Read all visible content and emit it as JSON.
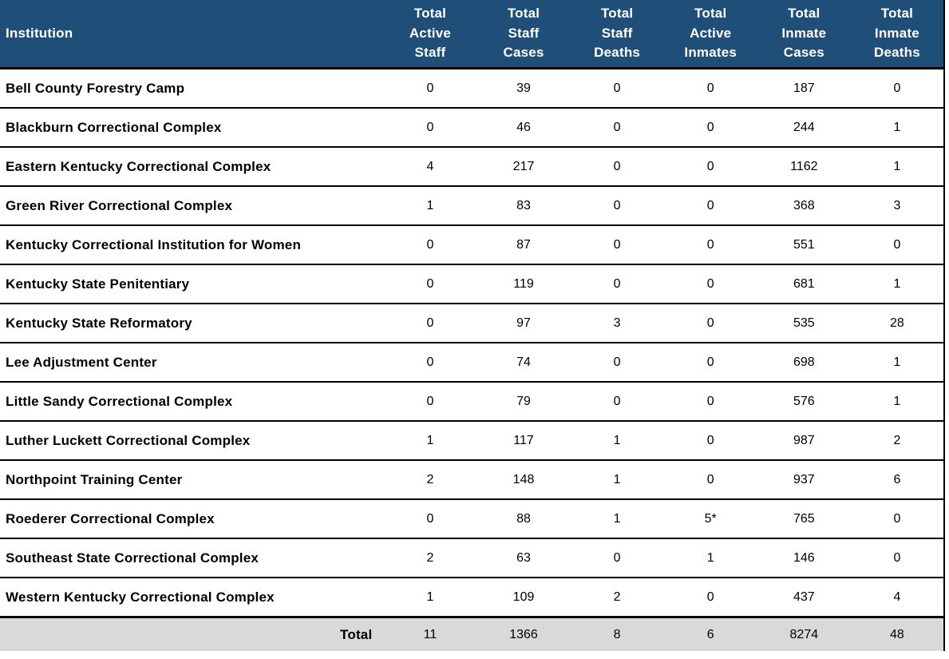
{
  "table": {
    "columns": [
      "Institution",
      "Total\nActive\nStaff",
      "Total\nStaff\nCases",
      "Total\nStaff\nDeaths",
      "Total\nActive\nInmates",
      "Total\nInmate\nCases",
      "Total\nInmate\nDeaths"
    ],
    "rows": [
      {
        "institution": "Bell County Forestry Camp",
        "values": [
          "0",
          "39",
          "0",
          "0",
          "187",
          "0"
        ]
      },
      {
        "institution": "Blackburn Correctional Complex",
        "values": [
          "0",
          "46",
          "0",
          "0",
          "244",
          "1"
        ]
      },
      {
        "institution": "Eastern Kentucky Correctional Complex",
        "values": [
          "4",
          "217",
          "0",
          "0",
          "1162",
          "1"
        ]
      },
      {
        "institution": "Green River Correctional Complex",
        "values": [
          "1",
          "83",
          "0",
          "0",
          "368",
          "3"
        ]
      },
      {
        "institution": "Kentucky Correctional Institution for Women",
        "values": [
          "0",
          "87",
          "0",
          "0",
          "551",
          "0"
        ]
      },
      {
        "institution": "Kentucky State Penitentiary",
        "values": [
          "0",
          "119",
          "0",
          "0",
          "681",
          "1"
        ]
      },
      {
        "institution": "Kentucky State Reformatory",
        "values": [
          "0",
          "97",
          "3",
          "0",
          "535",
          "28"
        ]
      },
      {
        "institution": "Lee Adjustment Center",
        "values": [
          "0",
          "74",
          "0",
          "0",
          "698",
          "1"
        ]
      },
      {
        "institution": "Little Sandy Correctional Complex",
        "values": [
          "0",
          "79",
          "0",
          "0",
          "576",
          "1"
        ]
      },
      {
        "institution": "Luther Luckett Correctional Complex",
        "values": [
          "1",
          "117",
          "1",
          "0",
          "987",
          "2"
        ]
      },
      {
        "institution": "Northpoint Training Center",
        "values": [
          "2",
          "148",
          "1",
          "0",
          "937",
          "6"
        ]
      },
      {
        "institution": "Roederer Correctional Complex",
        "values": [
          "0",
          "88",
          "1",
          "5*",
          "765",
          "0"
        ]
      },
      {
        "institution": "Southeast State Correctional Complex",
        "values": [
          "2",
          "63",
          "0",
          "1",
          "146",
          "0"
        ]
      },
      {
        "institution": "Western Kentucky Correctional Complex",
        "values": [
          "1",
          "109",
          "2",
          "0",
          "437",
          "4"
        ]
      }
    ],
    "total_row": {
      "label": "Total",
      "values": [
        "11",
        "1366",
        "8",
        "6",
        "8274",
        "48"
      ]
    }
  },
  "colors": {
    "header_bg": "#1F4E79",
    "header_text": "#FFFFFF",
    "row_bg": "#FFFFFF",
    "total_bg": "#D9D9D9",
    "border": "#000000",
    "body_text": "#000000"
  }
}
